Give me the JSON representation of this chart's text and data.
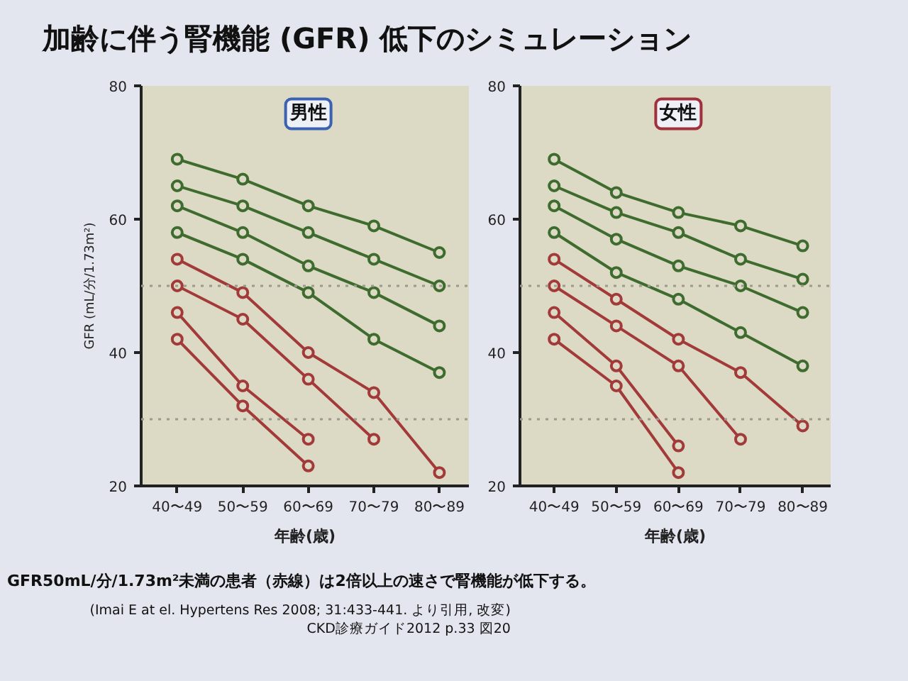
{
  "chart_data": [
    {
      "type": "line",
      "title": "加齢に伴う腎機能 (GFR) 低下のシミュレーション",
      "subtitle": "男性",
      "xlabel": "年齢(歳)",
      "ylabel": "GFR (mL/分/1.73m²)",
      "categories": [
        "40〜49",
        "50〜59",
        "60〜69",
        "70〜79",
        "80〜89"
      ],
      "ylim": [
        20,
        80
      ],
      "yticks": [
        20,
        40,
        60,
        80
      ],
      "grid": false,
      "marker": "circle",
      "line_style": "solid",
      "ref_lines": [
        {
          "axis": "y",
          "value": 50,
          "color": "#9d9a8c",
          "line_style": "dotted"
        },
        {
          "axis": "y",
          "value": 30,
          "color": "#9d9a8c",
          "line_style": "dotted"
        }
      ],
      "series": [
        {
          "color": "#3e6b2e",
          "values": [
            69,
            66,
            62,
            59,
            55
          ]
        },
        {
          "color": "#3e6b2e",
          "values": [
            65,
            62,
            58,
            54,
            50
          ]
        },
        {
          "color": "#3e6b2e",
          "values": [
            62,
            58,
            53,
            49,
            44
          ]
        },
        {
          "color": "#3e6b2e",
          "values": [
            58,
            54,
            49,
            42,
            37
          ]
        },
        {
          "color": "#a33a3a",
          "values": [
            54,
            49,
            40,
            34,
            22
          ]
        },
        {
          "color": "#a33a3a",
          "values": [
            50,
            45,
            36,
            27,
            null
          ]
        },
        {
          "color": "#a33a3a",
          "values": [
            46,
            35,
            27,
            null,
            null
          ]
        },
        {
          "color": "#a33a3a",
          "values": [
            42,
            32,
            23,
            null,
            null
          ]
        }
      ]
    },
    {
      "type": "line",
      "subtitle": "女性",
      "xlabel": "年齢(歳)",
      "categories": [
        "40〜49",
        "50〜59",
        "60〜69",
        "70〜79",
        "80〜89"
      ],
      "ylim": [
        20,
        80
      ],
      "yticks": [
        20,
        40,
        60,
        80
      ],
      "grid": false,
      "marker": "circle",
      "line_style": "solid",
      "ref_lines": [
        {
          "axis": "y",
          "value": 50,
          "color": "#9d9a8c",
          "line_style": "dotted"
        },
        {
          "axis": "y",
          "value": 30,
          "color": "#9d9a8c",
          "line_style": "dotted"
        }
      ],
      "series": [
        {
          "color": "#3e6b2e",
          "values": [
            69,
            64,
            61,
            59,
            56
          ]
        },
        {
          "color": "#3e6b2e",
          "values": [
            65,
            61,
            58,
            54,
            51
          ]
        },
        {
          "color": "#3e6b2e",
          "values": [
            62,
            57,
            53,
            50,
            46
          ]
        },
        {
          "color": "#3e6b2e",
          "values": [
            58,
            52,
            48,
            43,
            38
          ]
        },
        {
          "color": "#a33a3a",
          "values": [
            54,
            48,
            42,
            37,
            29
          ]
        },
        {
          "color": "#a33a3a",
          "values": [
            50,
            44,
            38,
            27,
            null
          ]
        },
        {
          "color": "#a33a3a",
          "values": [
            46,
            38,
            26,
            null,
            null
          ]
        },
        {
          "color": "#a33a3a",
          "values": [
            42,
            35,
            22,
            null,
            null
          ]
        }
      ],
      "annotations": [
        "GFR50mL/分/1.73m²未満の患者（赤線）は2倍以上の速さで腎機能が低下する。",
        "(Imai E at el. Hypertens Res 2008; 31:433-441. より引用, 改変)",
        "CKD診療ガイド2012 p.33 図20"
      ]
    }
  ]
}
